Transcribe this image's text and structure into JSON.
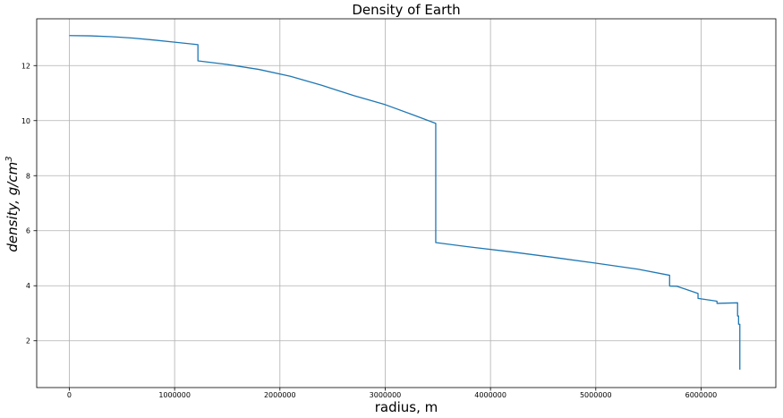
{
  "chart_data": {
    "type": "line",
    "title": "Density of Earth",
    "xlabel": "radius, m",
    "ylabel_main": "density, g/cm",
    "ylabel_sup": "3",
    "xlim": [
      -310000,
      6710000
    ],
    "ylim": [
      0.3,
      13.7
    ],
    "xticks": [
      0,
      1000000,
      2000000,
      3000000,
      4000000,
      5000000,
      6000000
    ],
    "xtick_labels": [
      "0",
      "1000000",
      "2000000",
      "3000000",
      "4000000",
      "5000000",
      "6000000"
    ],
    "yticks": [
      2,
      4,
      6,
      8,
      10,
      12
    ],
    "ytick_labels": [
      "2",
      "4",
      "6",
      "8",
      "10",
      "12"
    ],
    "grid": true,
    "line_color": "#1f77b4",
    "series": [
      {
        "x": [
          0,
          200000,
          400000,
          600000,
          800000,
          1000000,
          1221500,
          1221500,
          1500000,
          1800000,
          2100000,
          2400000,
          2700000,
          3000000,
          3300000,
          3480000,
          3480000,
          3800000,
          4200000,
          4600000,
          5000000,
          5400000,
          5701000,
          5701000,
          5771000,
          5971000,
          5971000,
          6151000,
          6151000,
          6346600,
          6346600,
          6356000,
          6356000,
          6368000,
          6368000
        ],
        "y": [
          13.09,
          13.08,
          13.05,
          13.0,
          12.93,
          12.85,
          12.76,
          12.17,
          12.04,
          11.86,
          11.61,
          11.28,
          10.91,
          10.58,
          10.16,
          9.9,
          5.57,
          5.41,
          5.23,
          5.03,
          4.82,
          4.6,
          4.38,
          3.99,
          3.98,
          3.72,
          3.54,
          3.44,
          3.36,
          3.38,
          2.9,
          2.9,
          2.6,
          2.6,
          0.95
        ]
      }
    ]
  }
}
